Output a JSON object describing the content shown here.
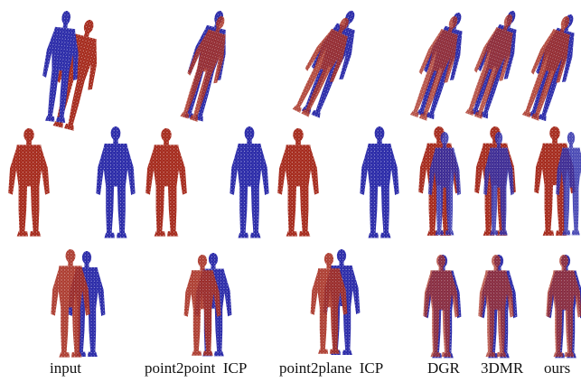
{
  "captions": {
    "input": "input",
    "p2p": "point2point  ICP",
    "p2pl": "point2plane  ICP",
    "dgr": "DGR",
    "dmr": "3DMR",
    "ours": "ours"
  },
  "colors": {
    "source": "#a52a1c",
    "target": "#2a2aa8"
  },
  "rows": [
    "misaligned-figures",
    "side-by-side-figures",
    "overlapping-figures"
  ],
  "columns": [
    "input",
    "point2point ICP",
    "point2plane ICP",
    "DGR",
    "3DMR",
    "ours"
  ]
}
